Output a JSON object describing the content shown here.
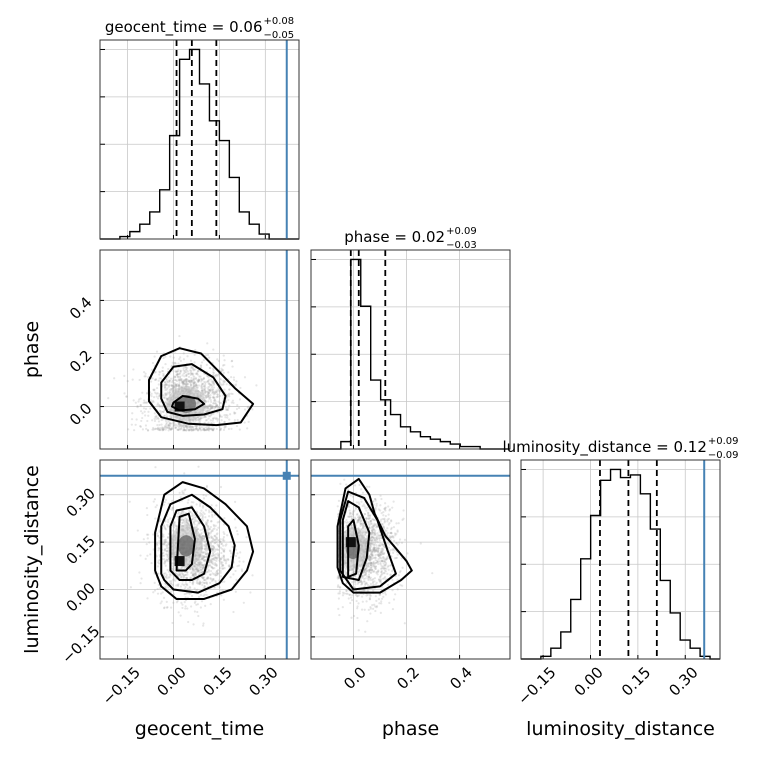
{
  "chart_data": {
    "type": "corner",
    "parameters": [
      {
        "name": "geocent_time",
        "title_main": "geocent_time = 0.06",
        "title_plus": "+0.08",
        "title_minus": "−0.05",
        "range": [
          -0.24,
          0.41
        ],
        "ticks": [
          -0.15,
          0.0,
          0.15,
          0.3
        ],
        "tick_labels": [
          "−0.15",
          "0.00",
          "0.15",
          "0.30"
        ],
        "quantiles": [
          0.01,
          0.06,
          0.14
        ],
        "truth": 0.37,
        "hist": {
          "edges": [
            -0.24,
            -0.2075,
            -0.175,
            -0.1425,
            -0.11,
            -0.0775,
            -0.045,
            -0.0125,
            0.02,
            0.0525,
            0.085,
            0.1175,
            0.15,
            0.1825,
            0.215,
            0.2475,
            0.28,
            0.3125,
            0.345,
            0.3775,
            0.41
          ],
          "counts": [
            0,
            0,
            1,
            3,
            6,
            11,
            20,
            42,
            73,
            77,
            63,
            48,
            40,
            25,
            11,
            6,
            2,
            0,
            0,
            0
          ]
        }
      },
      {
        "name": "phase",
        "title_main": "phase = 0.02",
        "title_plus": "+0.09",
        "title_minus": "−0.03",
        "range": [
          -0.16,
          0.59
        ],
        "ticks": [
          0.0,
          0.2,
          0.4
        ],
        "tick_labels": [
          "0.0",
          "0.2",
          "0.4"
        ],
        "quantiles": [
          -0.01,
          0.02,
          0.12
        ],
        "hist": {
          "edges": [
            -0.16,
            -0.1225,
            -0.085,
            -0.0475,
            -0.01,
            0.0275,
            0.065,
            0.1025,
            0.14,
            0.1775,
            0.215,
            0.2525,
            0.29,
            0.3275,
            0.365,
            0.4025,
            0.44,
            0.4775,
            0.515,
            0.5525,
            0.59
          ],
          "counts": [
            0,
            0,
            0,
            3,
            77,
            58,
            28,
            20,
            14,
            9,
            7,
            5,
            4,
            3,
            2,
            1,
            1,
            0,
            0,
            0
          ]
        }
      },
      {
        "name": "luminosity_distance",
        "title_main": "luminosity_distance = 0.12",
        "title_plus": "+0.09",
        "title_minus": "−0.09",
        "range": [
          -0.22,
          0.41
        ],
        "ticks": [
          -0.15,
          0.0,
          0.15,
          0.3
        ],
        "tick_labels": [
          "−0.15",
          "0.00",
          "0.15",
          "0.30"
        ],
        "quantiles": [
          0.03,
          0.12,
          0.21
        ],
        "truth": 0.36,
        "hist": {
          "edges": [
            -0.22,
            -0.1885,
            -0.157,
            -0.1255,
            -0.094,
            -0.0625,
            -0.031,
            0.0005,
            0.032,
            0.0635,
            0.095,
            0.1265,
            0.158,
            0.1895,
            0.221,
            0.2525,
            0.284,
            0.3155,
            0.347,
            0.3785,
            0.41
          ],
          "counts": [
            0,
            0,
            1,
            4,
            10,
            22,
            37,
            53,
            66,
            70,
            67,
            68,
            61,
            48,
            29,
            17,
            7,
            4,
            1,
            0
          ]
        }
      }
    ],
    "pairs": [
      {
        "x": 0,
        "y": 1,
        "center": [
          0.05,
          0.02
        ],
        "spread": [
          0.07,
          0.075
        ],
        "mode": [
          0.02,
          0.0
        ],
        "truth": [
          0.37,
          null
        ],
        "contours": [
          [
            [
              0.0,
              0.015
            ],
            [
              0.03,
              0.04
            ],
            [
              0.08,
              0.03
            ],
            [
              0.1,
              0.01
            ],
            [
              0.07,
              -0.01
            ],
            [
              0.02,
              -0.015
            ],
            [
              -0.005,
              0.0
            ]
          ],
          [
            [
              -0.04,
              0.09
            ],
            [
              0.0,
              0.15
            ],
            [
              0.06,
              0.16
            ],
            [
              0.13,
              0.11
            ],
            [
              0.17,
              0.04
            ],
            [
              0.16,
              -0.01
            ],
            [
              0.1,
              -0.03
            ],
            [
              0.03,
              -0.035
            ],
            [
              -0.02,
              -0.02
            ],
            [
              -0.04,
              0.03
            ]
          ],
          [
            [
              -0.08,
              0.1
            ],
            [
              -0.04,
              0.19
            ],
            [
              0.02,
              0.22
            ],
            [
              0.09,
              0.2
            ],
            [
              0.15,
              0.13
            ],
            [
              0.2,
              0.07
            ],
            [
              0.26,
              0.01
            ],
            [
              0.22,
              -0.06
            ],
            [
              0.14,
              -0.07
            ],
            [
              0.05,
              -0.065
            ],
            [
              -0.04,
              -0.04
            ],
            [
              -0.08,
              0.02
            ]
          ]
        ]
      },
      {
        "x": 0,
        "y": 2,
        "center": [
          0.06,
          0.12
        ],
        "spread": [
          0.06,
          0.075
        ],
        "mode": [
          0.02,
          0.09
        ],
        "truth": [
          0.37,
          0.36
        ],
        "contours": [
          [
            [
              0.01,
              0.06
            ],
            [
              0.02,
              0.23
            ],
            [
              0.05,
              0.24
            ],
            [
              0.07,
              0.16
            ],
            [
              0.06,
              0.08
            ],
            [
              0.04,
              0.06
            ]
          ],
          [
            [
              -0.01,
              0.06
            ],
            [
              -0.01,
              0.2
            ],
            [
              0.01,
              0.25
            ],
            [
              0.06,
              0.26
            ],
            [
              0.1,
              0.2
            ],
            [
              0.12,
              0.12
            ],
            [
              0.1,
              0.05
            ],
            [
              0.06,
              0.03
            ],
            [
              0.02,
              0.03
            ]
          ],
          [
            [
              -0.04,
              0.05
            ],
            [
              -0.04,
              0.2
            ],
            [
              -0.01,
              0.27
            ],
            [
              0.06,
              0.3
            ],
            [
              0.12,
              0.26
            ],
            [
              0.18,
              0.2
            ],
            [
              0.2,
              0.14
            ],
            [
              0.19,
              0.07
            ],
            [
              0.15,
              0.02
            ],
            [
              0.08,
              -0.01
            ],
            [
              0.0,
              0.0
            ],
            [
              -0.03,
              0.03
            ]
          ],
          [
            [
              -0.06,
              0.06
            ],
            [
              -0.06,
              0.18
            ],
            [
              -0.03,
              0.3
            ],
            [
              0.03,
              0.34
            ],
            [
              0.1,
              0.32
            ],
            [
              0.17,
              0.27
            ],
            [
              0.24,
              0.2
            ],
            [
              0.26,
              0.12
            ],
            [
              0.24,
              0.06
            ],
            [
              0.19,
              0.0
            ],
            [
              0.1,
              -0.03
            ],
            [
              0.01,
              -0.03
            ],
            [
              -0.04,
              0.01
            ]
          ]
        ]
      },
      {
        "x": 1,
        "y": 2,
        "center": [
          0.04,
          0.12
        ],
        "spread": [
          0.06,
          0.075
        ],
        "mode": [
          -0.01,
          0.15
        ],
        "truth": [
          null,
          0.36
        ],
        "contours": [
          [
            [
              -0.02,
              0.04
            ],
            [
              -0.02,
              0.2
            ],
            [
              0.0,
              0.22
            ],
            [
              0.02,
              0.14
            ],
            [
              0.01,
              0.05
            ]
          ],
          [
            [
              -0.04,
              0.04
            ],
            [
              -0.04,
              0.22
            ],
            [
              -0.02,
              0.28
            ],
            [
              0.02,
              0.26
            ],
            [
              0.06,
              0.18
            ],
            [
              0.05,
              0.1
            ],
            [
              0.02,
              0.03
            ]
          ],
          [
            [
              -0.05,
              0.06
            ],
            [
              -0.05,
              0.22
            ],
            [
              -0.02,
              0.31
            ],
            [
              0.04,
              0.29
            ],
            [
              0.09,
              0.22
            ],
            [
              0.13,
              0.12
            ],
            [
              0.16,
              0.05
            ],
            [
              0.1,
              0.01
            ],
            [
              0.0,
              0.0
            ]
          ],
          [
            [
              -0.06,
              0.07
            ],
            [
              -0.06,
              0.2
            ],
            [
              -0.03,
              0.32
            ],
            [
              0.02,
              0.35
            ],
            [
              0.06,
              0.3
            ],
            [
              0.08,
              0.24
            ],
            [
              0.12,
              0.17
            ],
            [
              0.2,
              0.09
            ],
            [
              0.22,
              0.06
            ],
            [
              0.18,
              0.03
            ],
            [
              0.1,
              -0.01
            ],
            [
              0.0,
              -0.01
            ],
            [
              -0.04,
              0.02
            ]
          ]
        ]
      }
    ]
  }
}
